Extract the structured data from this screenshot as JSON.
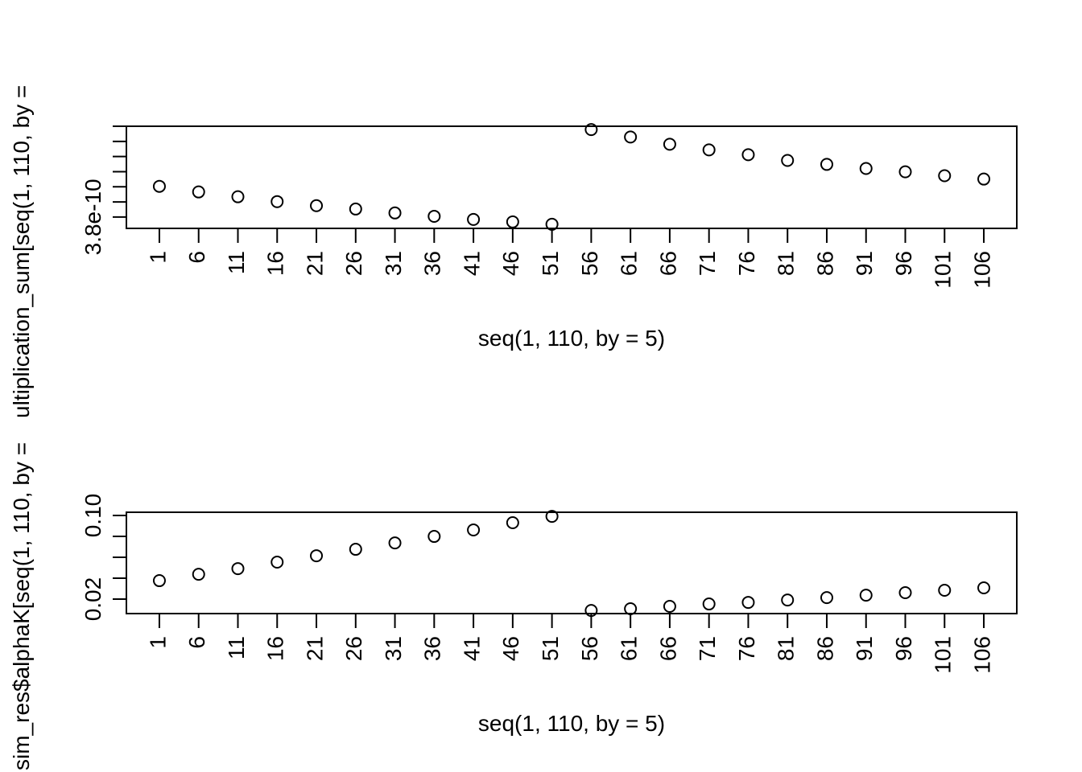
{
  "chart_data": [
    {
      "type": "scatter",
      "xlabel": "seq(1, 110, by = 5)",
      "ylabel": "ultiplication_sum[seq(1, 110, by =",
      "x": [
        1,
        6,
        11,
        16,
        21,
        26,
        31,
        36,
        41,
        46,
        51,
        56,
        61,
        66,
        71,
        76,
        81,
        86,
        91,
        96,
        101,
        106
      ],
      "values": [
        4.003e-10,
        3.966e-10,
        3.934e-10,
        3.902e-10,
        3.875e-10,
        3.853e-10,
        3.827e-10,
        3.805e-10,
        3.784e-10,
        3.768e-10,
        3.752e-10,
        4.378e-10,
        4.329e-10,
        4.281e-10,
        4.244e-10,
        4.212e-10,
        4.174e-10,
        4.148e-10,
        4.121e-10,
        4.099e-10,
        4.073e-10,
        4.051e-10
      ],
      "xlim": [
        -3.2,
        110.2
      ],
      "ylim": [
        3.725e-10,
        4.4e-10
      ],
      "xticks": [
        1,
        6,
        11,
        16,
        21,
        26,
        31,
        36,
        41,
        46,
        51,
        56,
        61,
        66,
        71,
        76,
        81,
        86,
        91,
        96,
        101,
        106
      ],
      "yticks": [
        3.8e-10,
        {
          "value": 3.9e-10,
          "label": null
        },
        {
          "value": 4e-10,
          "label": null
        },
        {
          "value": 4.1e-10,
          "label": null
        },
        {
          "value": 4.2e-10,
          "label": null
        },
        {
          "value": 4.3e-10,
          "label": null
        },
        {
          "value": 4.4e-10,
          "label": null
        }
      ],
      "color": "#000000"
    },
    {
      "type": "scatter",
      "xlabel": "seq(1, 110, by = 5)",
      "ylabel": "sim_res$alphaK[seq(1, 110, by =",
      "x": [
        1,
        6,
        11,
        16,
        21,
        26,
        31,
        36,
        41,
        46,
        51,
        56,
        61,
        66,
        71,
        76,
        81,
        86,
        91,
        96,
        101,
        106
      ],
      "values": [
        0.0377,
        0.0438,
        0.0492,
        0.0554,
        0.0615,
        0.0677,
        0.0738,
        0.08,
        0.0862,
        0.0931,
        0.0992,
        0.0092,
        0.0108,
        0.0131,
        0.0154,
        0.0169,
        0.0192,
        0.0215,
        0.0238,
        0.0262,
        0.0285,
        0.0308
      ],
      "xlim": [
        -3.2,
        110.2
      ],
      "ylim": [
        0.0062,
        0.1031
      ],
      "xticks": [
        1,
        6,
        11,
        16,
        21,
        26,
        31,
        36,
        41,
        46,
        51,
        56,
        61,
        66,
        71,
        76,
        81,
        86,
        91,
        96,
        101,
        106
      ],
      "yticks": [
        0.02,
        {
          "value": 0.04,
          "label": null
        },
        {
          "value": 0.06,
          "label": null
        },
        {
          "value": 0.08,
          "label": null
        },
        {
          "value": 0.1,
          "label": "0.10"
        }
      ],
      "color": "#000000"
    }
  ]
}
